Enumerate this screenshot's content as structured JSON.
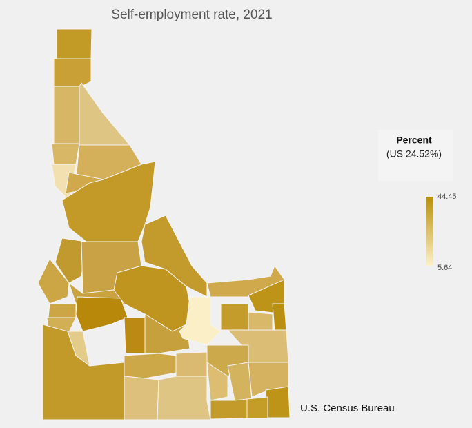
{
  "title": "Self-employment rate, 2021",
  "legend": {
    "title": "Percent",
    "subtitle": "(US 24.52%)",
    "max": 44.45,
    "min": 5.64,
    "colors": [
      "#fdf0c8",
      "#b8900a"
    ]
  },
  "source": "U.S. Census Bureau"
}
